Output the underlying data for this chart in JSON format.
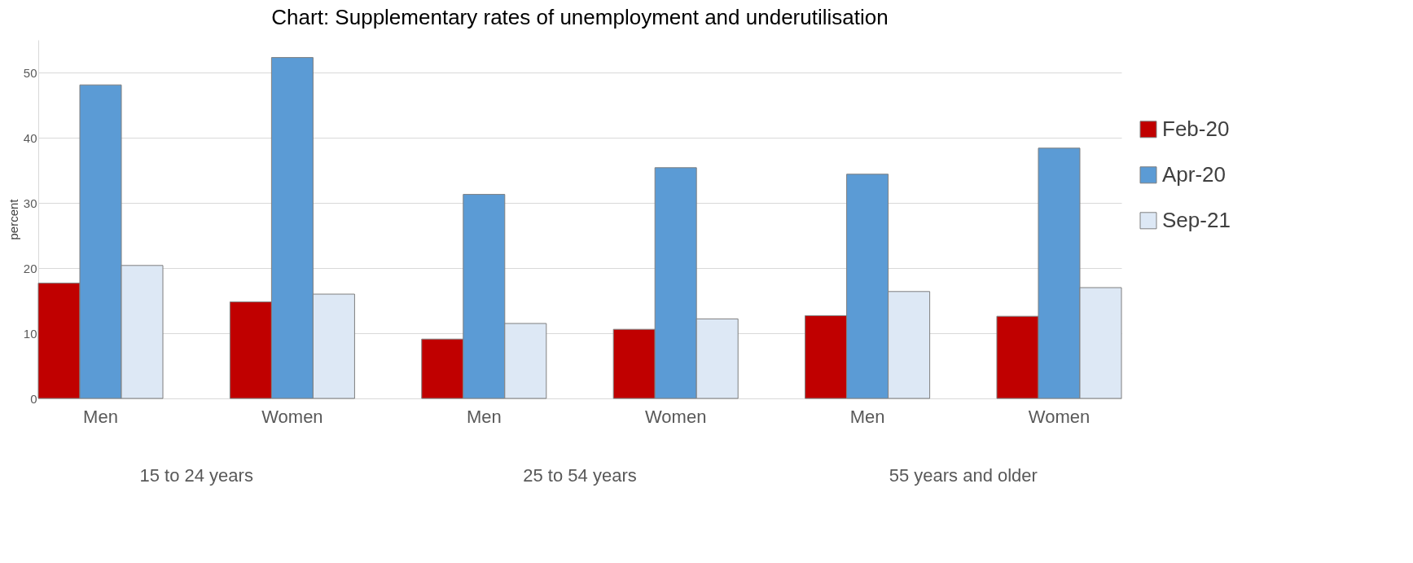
{
  "chart_data": {
    "type": "bar",
    "title": "Chart: Supplementary rates of unemployment and underutilisation",
    "ylabel": "percent",
    "categories": [
      "Men",
      "Women",
      "Men",
      "Women",
      "Men",
      "Women"
    ],
    "series": [
      {
        "name": "Feb-20",
        "color": "#c00000",
        "values": [
          17.7,
          14.8,
          9.1,
          10.6,
          12.7,
          12.6
        ]
      },
      {
        "name": "Apr-20",
        "color": "#5b9bd5",
        "values": [
          48.1,
          52.3,
          31.3,
          35.4,
          34.4,
          38.4
        ]
      },
      {
        "name": "Sep-21",
        "color": "#dde8f5",
        "values": [
          20.4,
          16.0,
          11.5,
          12.2,
          16.4,
          17.0
        ]
      }
    ],
    "annotations": [
      "15 to 24 years",
      "25 to 54 years",
      "55 years and older"
    ],
    "ylim": [
      0,
      55
    ],
    "yticks": [
      0,
      10,
      20,
      30,
      40,
      50
    ],
    "grid": "y",
    "legend": "right"
  }
}
